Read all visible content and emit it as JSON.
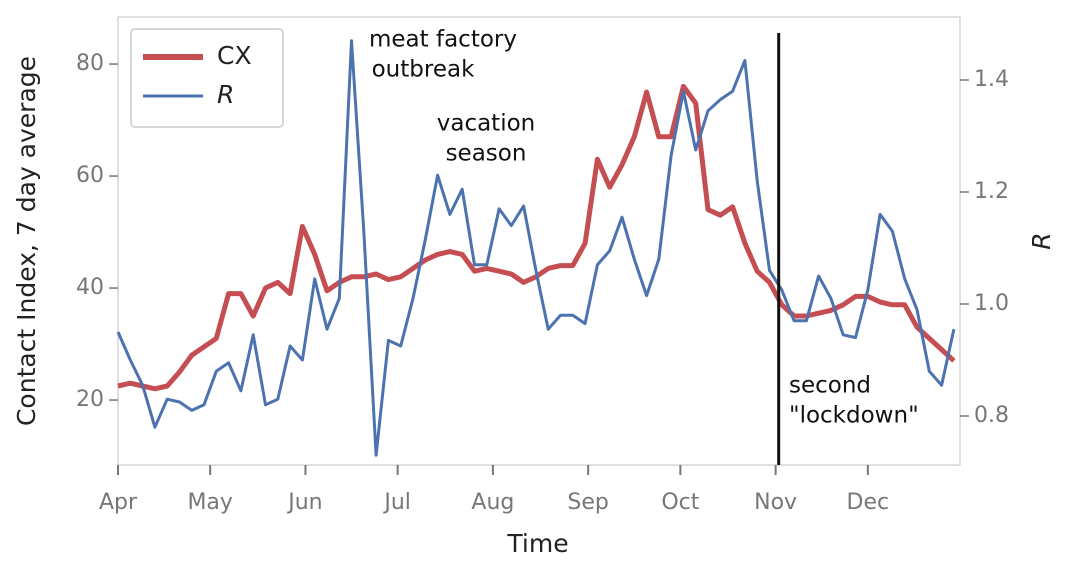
{
  "chart_data": {
    "type": "line",
    "xlabel": "Time",
    "ylabel": "Contact Index, 7 day average",
    "y2label": "R",
    "xlim": [
      0,
      274
    ],
    "xticks": [
      {
        "value": 0,
        "label": "Apr"
      },
      {
        "value": 30,
        "label": "May"
      },
      {
        "value": 61,
        "label": "Jun"
      },
      {
        "value": 91,
        "label": "Jul"
      },
      {
        "value": 122,
        "label": "Aug"
      },
      {
        "value": 153,
        "label": "Sep"
      },
      {
        "value": 183,
        "label": "Oct"
      },
      {
        "value": 214,
        "label": "Nov"
      },
      {
        "value": 244,
        "label": "Dec"
      }
    ],
    "ylim": [
      8.4,
      88.4
    ],
    "yticks": [
      20,
      40,
      60,
      80
    ],
    "y2lim": [
      0.7125,
      1.5125
    ],
    "y2ticks": [
      0.8,
      {
        "value": 1,
        "label": "1.0"
      },
      1.2,
      1.4
    ],
    "legend": "upper left",
    "vline": {
      "x": 215,
      "color": "#111111"
    },
    "annotations": [
      [
        "meat factory",
        "outbreak"
      ],
      [
        "vacation",
        "season"
      ],
      [
        "second",
        "\"lockdown\""
      ]
    ],
    "x": [
      0,
      4,
      8,
      12,
      16,
      20,
      24,
      28,
      32,
      36,
      40,
      44,
      48,
      52,
      56,
      60,
      64,
      68,
      72,
      76,
      80,
      84,
      88,
      92,
      96,
      100,
      104,
      108,
      112,
      116,
      120,
      124,
      128,
      132,
      136,
      140,
      144,
      148,
      152,
      156,
      160,
      164,
      168,
      172,
      176,
      180,
      184,
      188,
      192,
      196,
      200,
      204,
      208,
      212,
      216,
      220,
      224,
      228,
      232,
      236,
      240,
      244,
      248,
      252,
      256,
      260,
      264,
      268,
      272
    ],
    "series": [
      {
        "name": "CX",
        "color": "#c44e52",
        "values": [
          22.5,
          23,
          22.5,
          22,
          22.5,
          25,
          28,
          29.5,
          31,
          39,
          39,
          35,
          40,
          41,
          39,
          51,
          46,
          39.5,
          41,
          42,
          42,
          42.5,
          41.5,
          42,
          43.5,
          45,
          46,
          46.5,
          46,
          43,
          43.5,
          43,
          42.5,
          41,
          42,
          43.5,
          44,
          44,
          48,
          63,
          58,
          62,
          67,
          75,
          67,
          67,
          76,
          73,
          54,
          53,
          54.5,
          48,
          43,
          41,
          37,
          35,
          35,
          35.5,
          36,
          37,
          38.5,
          38.5,
          37.5,
          37,
          37,
          33,
          31,
          29,
          27
        ]
      },
      {
        "name": "R",
        "color": "#4c72b0",
        "axis": "y2",
        "values": [
          0.95,
          0.9,
          0.855,
          0.78,
          0.83,
          0.825,
          0.81,
          0.82,
          0.88,
          0.895,
          0.845,
          0.945,
          0.82,
          0.83,
          0.925,
          0.9,
          1.045,
          0.955,
          1.01,
          1.47,
          1.13,
          0.73,
          0.935,
          0.925,
          1.01,
          1.115,
          1.23,
          1.16,
          1.205,
          1.07,
          1.07,
          1.17,
          1.14,
          1.175,
          1.06,
          0.955,
          0.98,
          0.98,
          0.965,
          1.07,
          1.095,
          1.155,
          1.08,
          1.015,
          1.08,
          1.265,
          1.38,
          1.275,
          1.345,
          1.365,
          1.38,
          1.435,
          1.22,
          1.06,
          1.025,
          0.97,
          0.97,
          1.05,
          1.01,
          0.945,
          0.94,
          1.025,
          1.16,
          1.13,
          1.045,
          0.99,
          0.88,
          0.855,
          0.955
        ]
      }
    ]
  }
}
